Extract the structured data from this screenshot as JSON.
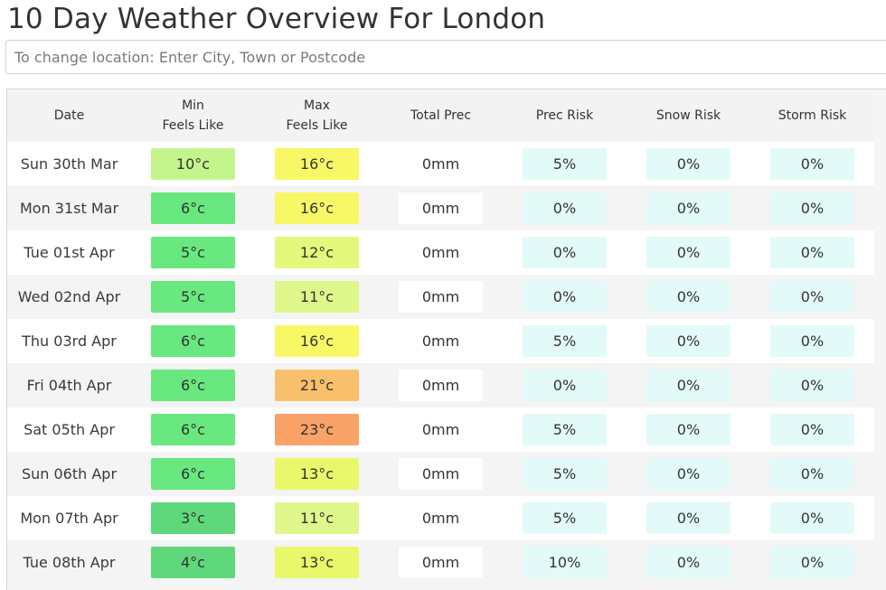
{
  "page": {
    "title": "10 Day Weather Overview For London"
  },
  "location_search": {
    "placeholder": "To change location: Enter City, Town or Postcode"
  },
  "table": {
    "headers": {
      "date": "Date",
      "min_line1": "Min",
      "min_line2": "Feels Like",
      "max_line1": "Max",
      "max_line2": "Feels Like",
      "total_prec": "Total Prec",
      "prec_risk": "Prec Risk",
      "snow_risk": "Snow Risk",
      "storm_risk": "Storm Risk"
    },
    "rows": [
      {
        "date": "Sun 30th Mar",
        "min": "10°c",
        "min_color": "#c3f58c",
        "max": "16°c",
        "max_color": "#f8f766",
        "total": "0mm",
        "prec": "5%",
        "snow": "0%",
        "storm": "0%"
      },
      {
        "date": "Mon 31st Mar",
        "min": "6°c",
        "min_color": "#68e87e",
        "max": "16°c",
        "max_color": "#f8f766",
        "total": "0mm",
        "prec": "0%",
        "snow": "0%",
        "storm": "0%"
      },
      {
        "date": "Tue 01st Apr",
        "min": "5°c",
        "min_color": "#68e87e",
        "max": "12°c",
        "max_color": "#e4f87c",
        "total": "0mm",
        "prec": "0%",
        "snow": "0%",
        "storm": "0%"
      },
      {
        "date": "Wed 02nd Apr",
        "min": "5°c",
        "min_color": "#68e87e",
        "max": "11°c",
        "max_color": "#dff78a",
        "total": "0mm",
        "prec": "0%",
        "snow": "0%",
        "storm": "0%"
      },
      {
        "date": "Thu 03rd Apr",
        "min": "6°c",
        "min_color": "#68e87e",
        "max": "16°c",
        "max_color": "#f8f766",
        "total": "0mm",
        "prec": "5%",
        "snow": "0%",
        "storm": "0%"
      },
      {
        "date": "Fri 04th Apr",
        "min": "6°c",
        "min_color": "#68e87e",
        "max": "21°c",
        "max_color": "#f9c06c",
        "total": "0mm",
        "prec": "0%",
        "snow": "0%",
        "storm": "0%"
      },
      {
        "date": "Sat 05th Apr",
        "min": "6°c",
        "min_color": "#68e87e",
        "max": "23°c",
        "max_color": "#f9a268",
        "total": "0mm",
        "prec": "5%",
        "snow": "0%",
        "storm": "0%"
      },
      {
        "date": "Sun 06th Apr",
        "min": "6°c",
        "min_color": "#68e87e",
        "max": "13°c",
        "max_color": "#e8f86a",
        "total": "0mm",
        "prec": "5%",
        "snow": "0%",
        "storm": "0%"
      },
      {
        "date": "Mon 07th Apr",
        "min": "3°c",
        "min_color": "#5ed87a",
        "max": "11°c",
        "max_color": "#dff78a",
        "total": "0mm",
        "prec": "5%",
        "snow": "0%",
        "storm": "0%"
      },
      {
        "date": "Tue 08th Apr",
        "min": "4°c",
        "min_color": "#5ed87a",
        "max": "13°c",
        "max_color": "#e8f86a",
        "total": "0mm",
        "prec": "10%",
        "snow": "0%",
        "storm": "0%"
      }
    ]
  }
}
